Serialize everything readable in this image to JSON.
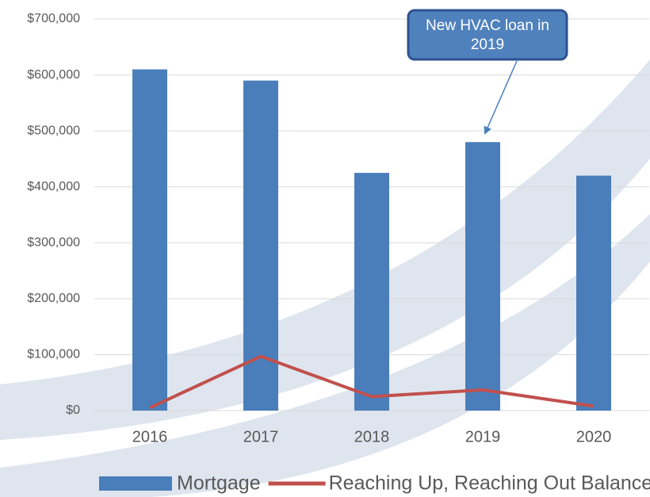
{
  "chart_data": {
    "type": "bar",
    "annotation": "New HVAC loan in 2019",
    "categories": [
      "2016",
      "2017",
      "2018",
      "2019",
      "2020"
    ],
    "series": [
      {
        "name": "Mortgage",
        "type": "bar",
        "color": "#4a7ebb",
        "values": [
          610000,
          590000,
          425000,
          480000,
          420000
        ]
      },
      {
        "name": "Reaching Up, Reaching Out Balance",
        "type": "line",
        "color": "#c0504d",
        "values": [
          5000,
          97000,
          25000,
          37000,
          8000
        ]
      }
    ],
    "ylim": [
      0,
      700000
    ],
    "yticks": [
      {
        "value": 0,
        "label": "$0"
      },
      {
        "value": 100000,
        "label": "$100,000"
      },
      {
        "value": 200000,
        "label": "$200,000"
      },
      {
        "value": 300000,
        "label": "$300,000"
      },
      {
        "value": 400000,
        "label": "$400,000"
      },
      {
        "value": 500000,
        "label": "$500,000"
      },
      {
        "value": 600000,
        "label": "$600,000"
      },
      {
        "value": 700000,
        "label": "$700,000"
      }
    ],
    "grid": true,
    "legend": "bottom"
  }
}
